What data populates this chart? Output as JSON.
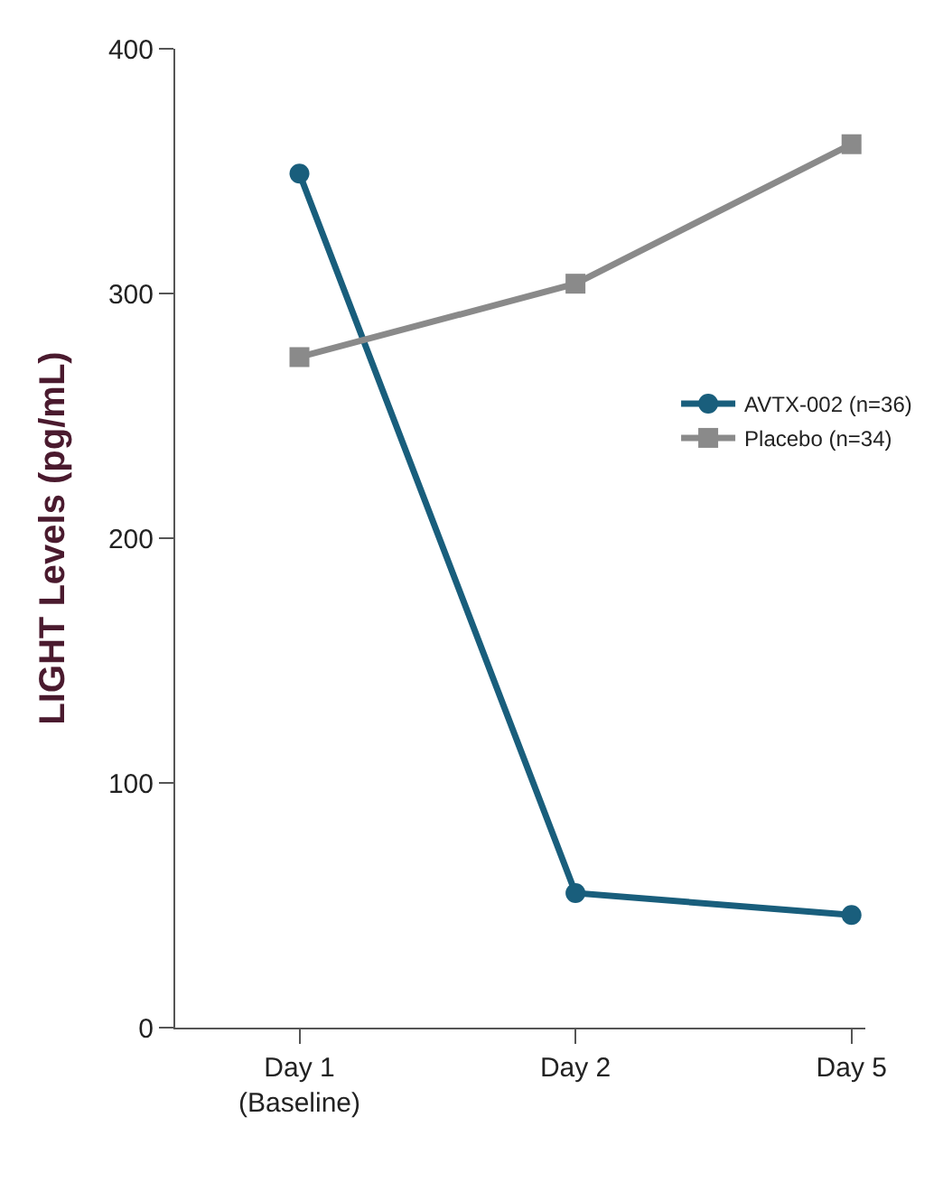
{
  "chart_data": {
    "type": "line",
    "ylabel": "LIGHT Levels (pg/mL)",
    "categories": [
      "Day 1\n(Baseline)",
      "Day 2",
      "Day 5"
    ],
    "series": [
      {
        "name": "AVTX-002 (n=36)",
        "color": "#195e7c",
        "marker": "circle",
        "values": [
          349,
          55,
          46
        ]
      },
      {
        "name": "Placebo (n=34)",
        "color": "#8a8a8a",
        "marker": "square",
        "values": [
          274,
          304,
          361
        ]
      }
    ],
    "ylim": [
      0,
      400
    ],
    "yticks": [
      0,
      100,
      200,
      300,
      400
    ],
    "legend": "right"
  }
}
